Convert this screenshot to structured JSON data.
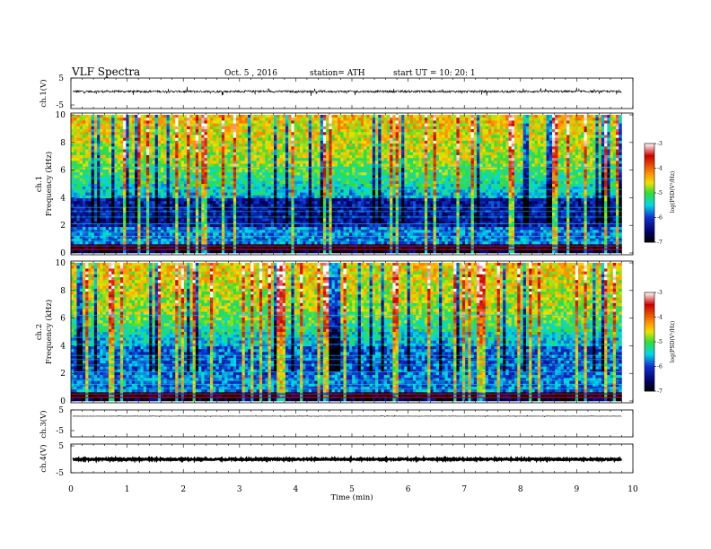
{
  "header": {
    "title": "VLF Spectra",
    "date": "Oct. 5 , 2016",
    "station": "station= ATH",
    "start": "start  UT =    10: 20: 1"
  },
  "colors": {
    "red": "#cc0000",
    "orange": "#ff8c00",
    "yellow": "#f0e000",
    "green": "#33dd33",
    "cyan": "#00d8e8",
    "blue": "#1030d0",
    "navy": "#000066",
    "black": "#000000"
  },
  "chart_data": [
    {
      "type": "line",
      "ylabel": "ch.1(V)",
      "ylim": [
        -5,
        5
      ],
      "yticks": [
        "5",
        "-5"
      ],
      "baseline": 0,
      "noise_amplitude": 0.4,
      "spike_amplitude": 1.5
    },
    {
      "type": "heatmap",
      "ylabel_top": "ch.1",
      "ylabel": "Frequency  (kHz)",
      "ylim": [
        0,
        10
      ],
      "yticks": [
        "0",
        "2",
        "4",
        "6",
        "8",
        "10"
      ],
      "colorbar": {
        "label": "log(PSD(V²/Hz)",
        "range": [
          -7,
          -3
        ],
        "ticks": [
          "-3",
          "-4",
          "-5",
          "-6",
          "-7"
        ]
      }
    },
    {
      "type": "heatmap",
      "ylabel_top": "ch.2",
      "ylabel": "Frequency  (kHz)",
      "ylim": [
        0,
        10
      ],
      "yticks": [
        "0",
        "2",
        "4",
        "6",
        "8",
        "10"
      ],
      "colorbar": {
        "label": "log(PSD(V²/Hz)",
        "range": [
          -7,
          -3
        ],
        "ticks": [
          "-3",
          "-4",
          "-5",
          "-6",
          "-7"
        ]
      }
    },
    {
      "type": "line",
      "ylabel": "ch.3(V)",
      "ylim": [
        -5,
        5
      ],
      "yticks": [
        "5",
        "-5"
      ],
      "baseline": 2,
      "noise_amplitude": 0.05,
      "spike_amplitude": 0.3
    },
    {
      "type": "line",
      "ylabel": "ch.4(V)",
      "ylim": [
        -5,
        5
      ],
      "yticks": [
        "5",
        "-5"
      ],
      "baseline": 0,
      "noise_amplitude": 0.25,
      "spike_amplitude": 0.0
    }
  ],
  "xaxis": {
    "label": "Time  (min)",
    "xlim": [
      0,
      10
    ],
    "ticks": [
      "0",
      "1",
      "2",
      "3",
      "4",
      "5",
      "6",
      "7",
      "8",
      "9",
      "10"
    ],
    "data_end": 9.8
  }
}
